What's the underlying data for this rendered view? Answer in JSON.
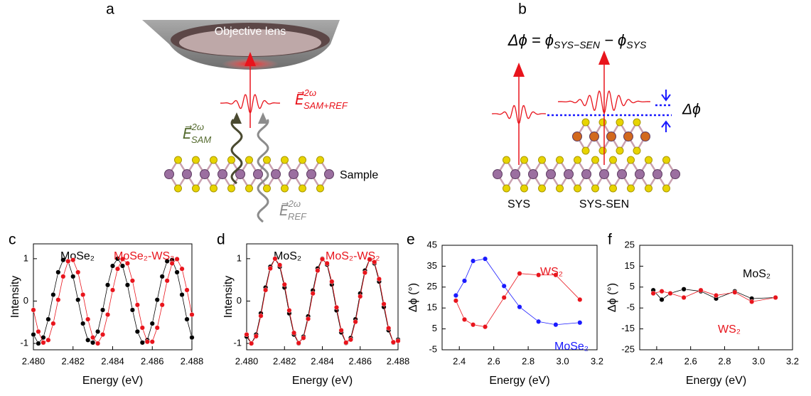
{
  "panel_a": {
    "label": "a",
    "lens_label": "Objective lens",
    "sample_label": "Sample",
    "field_total": {
      "base": "E⃗",
      "sup": "2ω",
      "sub": "SAM+REF"
    },
    "field_sam": {
      "base": "E⃗",
      "sup": "2ω",
      "sub": "SAM"
    },
    "field_ref": {
      "base": "E⃗",
      "sup": "2ω",
      "sub": "REF"
    }
  },
  "panel_b": {
    "label": "b",
    "equation": [
      "Δϕ = ϕ",
      "SYS−SEN",
      " − ϕ",
      "SYS"
    ],
    "delta_label": "Δϕ",
    "sys_label": "SYS",
    "syssen_label": "SYS-SEN"
  },
  "chart_data": [
    {
      "type": "line",
      "panel_label": "c",
      "x_label": "Energy (eV)",
      "y_label": "Intensity",
      "x": [
        2.48,
        2.48025,
        2.4805,
        2.48075,
        2.481,
        2.48125,
        2.4815,
        2.48175,
        2.482,
        2.48225,
        2.4825,
        2.48275,
        2.483,
        2.48325,
        2.4835,
        2.48375,
        2.484,
        2.48425,
        2.4845,
        2.48475,
        2.485,
        2.48525,
        2.4855,
        2.48575,
        2.486,
        2.48625,
        2.4865,
        2.48675,
        2.487,
        2.48725,
        2.4875,
        2.48775,
        2.488
      ],
      "series": [
        {
          "name": "MoSe₂",
          "color": "#000000",
          "values": [
            -0.79,
            -1.0,
            -0.86,
            -0.43,
            0.15,
            0.68,
            0.97,
            0.94,
            0.58,
            0.03,
            -0.53,
            -0.92,
            -0.98,
            -0.72,
            -0.21,
            0.38,
            0.83,
            1.0,
            0.83,
            0.38,
            -0.21,
            -0.72,
            -0.98,
            -0.92,
            -0.53,
            0.03,
            0.58,
            0.94,
            0.97,
            0.68,
            0.15,
            -0.43,
            -0.86
          ]
        },
        {
          "name": "MoSe₂-WS₂",
          "color": "#e8141c",
          "values": [
            -0.21,
            -0.72,
            -0.98,
            -0.92,
            -0.53,
            0.03,
            0.58,
            0.94,
            0.97,
            0.68,
            0.15,
            -0.43,
            -0.86,
            -1.0,
            -0.79,
            -0.32,
            0.26,
            0.76,
            0.99,
            0.89,
            0.48,
            -0.09,
            -0.63,
            -0.96,
            -0.96,
            -0.63,
            -0.09,
            0.48,
            0.89,
            0.99,
            0.76,
            0.26,
            -0.32
          ]
        }
      ],
      "xlim": [
        2.48,
        2.488
      ],
      "xticks": [
        {
          "value": 2.48,
          "label": "2.480"
        },
        {
          "value": 2.482,
          "label": "2.482"
        },
        {
          "value": 2.484,
          "label": "2.484"
        },
        {
          "value": 2.486,
          "label": "2.486"
        },
        {
          "value": 2.488,
          "label": "2.488"
        }
      ],
      "ylim": [
        -1.15,
        1.35
      ],
      "yticks": [
        -1,
        0,
        1
      ]
    },
    {
      "type": "line",
      "panel_label": "d",
      "x_label": "Energy (eV)",
      "y_label": "Intensity",
      "x": [
        2.48,
        2.48025,
        2.4805,
        2.48075,
        2.481,
        2.48125,
        2.4815,
        2.48175,
        2.482,
        2.48225,
        2.4825,
        2.48275,
        2.483,
        2.48325,
        2.4835,
        2.48375,
        2.484,
        2.48425,
        2.4845,
        2.48475,
        2.485,
        2.48525,
        2.4855,
        2.48575,
        2.486,
        2.48625,
        2.4865,
        2.48675,
        2.487,
        2.48725,
        2.4875,
        2.48775,
        2.488
      ],
      "series": [
        {
          "name": "MoS₂",
          "color": "#000000",
          "values": [
            -0.84,
            -1.0,
            -0.79,
            -0.29,
            0.32,
            0.81,
            1.0,
            0.81,
            0.32,
            -0.29,
            -0.79,
            -1.0,
            -0.84,
            -0.36,
            0.25,
            0.77,
            1.0,
            0.86,
            0.39,
            -0.22,
            -0.74,
            -0.99,
            -0.87,
            -0.43,
            0.18,
            0.72,
            0.99,
            0.89,
            0.46,
            -0.14,
            -0.69,
            -0.98,
            -0.91
          ]
        },
        {
          "name": "MoS₂-WS₂",
          "color": "#e8141c",
          "values": [
            -0.79,
            -1.0,
            -0.83,
            -0.35,
            0.26,
            0.77,
            1.0,
            0.85,
            0.39,
            -0.22,
            -0.75,
            -0.99,
            -0.87,
            -0.42,
            0.18,
            0.72,
            0.99,
            0.89,
            0.46,
            -0.15,
            -0.69,
            -0.98,
            -0.91,
            -0.49,
            0.11,
            0.67,
            0.98,
            0.92,
            0.52,
            -0.07,
            -0.64,
            -0.97,
            -0.94
          ]
        }
      ],
      "xlim": [
        2.48,
        2.488
      ],
      "xticks": [
        {
          "value": 2.48,
          "label": "2.480"
        },
        {
          "value": 2.482,
          "label": "2.482"
        },
        {
          "value": 2.484,
          "label": "2.484"
        },
        {
          "value": 2.486,
          "label": "2.486"
        },
        {
          "value": 2.488,
          "label": "2.488"
        }
      ],
      "ylim": [
        -1.15,
        1.35
      ],
      "yticks": [
        -1,
        0,
        1
      ]
    },
    {
      "type": "line",
      "panel_label": "e",
      "x_label": "Energy (eV)",
      "y_label": "Δϕ (°)",
      "x": [
        2.38,
        2.43,
        2.48,
        2.55,
        2.66,
        2.75,
        2.86,
        2.96,
        3.1
      ],
      "series": [
        {
          "name": "MoSe₂",
          "color": "#1a1aff",
          "values": [
            21,
            28,
            37.5,
            38.5,
            25.5,
            15.5,
            8.5,
            7,
            8
          ]
        },
        {
          "name": "WS₂",
          "color": "#e8141c",
          "values": [
            18.5,
            9.5,
            7,
            6,
            20,
            31.5,
            30.8,
            30.8,
            19
          ]
        }
      ],
      "xlim": [
        2.3,
        3.2
      ],
      "xticks": [
        2.4,
        2.6,
        2.8,
        {
          "value": 3,
          "label": "3.0"
        },
        3.2
      ],
      "ylim": [
        -5,
        45
      ],
      "yticks": [
        -5,
        5,
        15,
        25,
        35,
        45
      ]
    },
    {
      "type": "line",
      "panel_label": "f",
      "x_label": "Energy (eV)",
      "y_label": "Δϕ (°)",
      "x": [
        2.38,
        2.43,
        2.48,
        2.56,
        2.66,
        2.75,
        2.86,
        2.96,
        3.1
      ],
      "series": [
        {
          "name": "MoS₂",
          "color": "#000000",
          "values": [
            3.5,
            -1,
            2,
            4,
            3,
            -0.5,
            3,
            -0.5,
            0
          ]
        },
        {
          "name": "WS₂",
          "color": "#e8141c",
          "values": [
            2,
            3,
            2,
            0,
            3.5,
            1,
            2.5,
            -2,
            0
          ]
        }
      ],
      "xlim": [
        2.3,
        3.2
      ],
      "xticks": [
        2.4,
        2.6,
        2.8,
        {
          "value": 3,
          "label": "3.0"
        },
        3.2
      ],
      "ylim": [
        -25,
        25
      ],
      "yticks": [
        -25,
        -15,
        -5,
        5,
        15,
        25
      ]
    }
  ]
}
